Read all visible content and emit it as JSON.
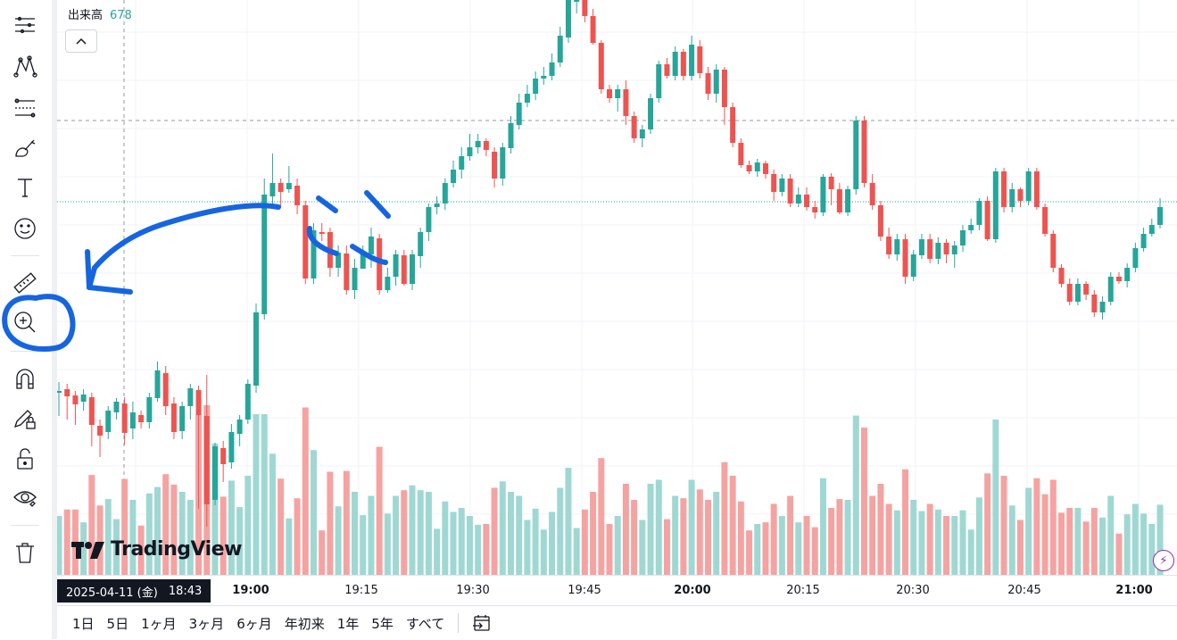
{
  "legend": {
    "label": "出来高",
    "value": "678"
  },
  "toolbar": {
    "tools": [
      "menu-icon",
      "pattern-icon",
      "fib-icon",
      "brush-icon",
      "text-icon",
      "emoji-icon",
      "ruler-icon",
      "zoom-in-icon",
      "magnet-icon",
      "lock-pencil-icon",
      "lock-icon",
      "eye-icon",
      "trash-icon"
    ]
  },
  "logo": {
    "text": "TradingView"
  },
  "time_axis": {
    "cursor_date": "2025-04-11 (金)",
    "cursor_time": "18:43",
    "ticks": [
      {
        "label": "19:00",
        "bold": true
      },
      {
        "label": "19:15",
        "bold": false
      },
      {
        "label": "19:30",
        "bold": false
      },
      {
        "label": "19:45",
        "bold": false
      },
      {
        "label": "20:00",
        "bold": true
      },
      {
        "label": "20:15",
        "bold": false
      },
      {
        "label": "20:30",
        "bold": false
      },
      {
        "label": "20:45",
        "bold": false
      },
      {
        "label": "21:00",
        "bold": true
      }
    ]
  },
  "ranges": [
    "1日",
    "5日",
    "1ヶ月",
    "3ヶ月",
    "6ヶ月",
    "年初来",
    "1年",
    "5年",
    "すべて"
  ],
  "colors": {
    "up": "#26a69a",
    "down": "#ef5350",
    "up_vol": "#9fd8d3",
    "down_vol": "#f5a3a1",
    "annotation": "#1565e0"
  },
  "candles": [
    [
      440,
      438,
      428,
      466
    ],
    [
      436,
      444,
      430,
      470
    ],
    [
      443,
      453,
      438,
      476
    ],
    [
      450,
      442,
      436,
      460
    ],
    [
      445,
      476,
      440,
      500
    ],
    [
      477,
      488,
      470,
      512
    ],
    [
      484,
      460,
      455,
      492
    ],
    [
      462,
      450,
      446,
      470
    ],
    [
      452,
      485,
      445,
      498
    ],
    [
      480,
      462,
      450,
      492
    ],
    [
      465,
      473,
      460,
      480
    ],
    [
      473,
      445,
      440,
      480
    ],
    [
      446,
      415,
      405,
      450
    ],
    [
      418,
      455,
      410,
      465
    ],
    [
      452,
      484,
      445,
      492
    ],
    [
      483,
      455,
      450,
      492
    ],
    [
      455,
      435,
      430,
      470
    ],
    [
      437,
      465,
      432,
      570
    ],
    [
      466,
      565,
      420,
      590
    ],
    [
      560,
      500,
      496,
      566
    ],
    [
      502,
      520,
      494,
      540
    ],
    [
      518,
      484,
      475,
      525
    ],
    [
      486,
      470,
      465,
      500
    ],
    [
      470,
      430,
      425,
      475
    ],
    [
      432,
      350,
      340,
      440
    ],
    [
      352,
      218,
      200,
      358
    ],
    [
      220,
      205,
      172,
      230
    ],
    [
      205,
      215,
      200,
      232
    ],
    [
      212,
      205,
      186,
      216
    ],
    [
      208,
      230,
      200,
      240
    ],
    [
      230,
      312,
      225,
      318
    ],
    [
      312,
      258,
      250,
      318
    ],
    [
      260,
      262,
      250,
      270
    ],
    [
      260,
      300,
      255,
      310
    ],
    [
      300,
      283,
      275,
      310
    ],
    [
      284,
      325,
      275,
      330
    ],
    [
      325,
      300,
      290,
      335
    ],
    [
      301,
      285,
      275,
      300
    ],
    [
      285,
      265,
      255,
      300
    ],
    [
      267,
      325,
      262,
      330
    ],
    [
      325,
      310,
      300,
      328
    ],
    [
      310,
      285,
      280,
      320
    ],
    [
      286,
      318,
      280,
      320
    ],
    [
      318,
      285,
      280,
      325
    ],
    [
      287,
      260,
      255,
      300
    ],
    [
      260,
      232,
      228,
      270
    ],
    [
      232,
      228,
      220,
      240
    ],
    [
      228,
      205,
      200,
      235
    ],
    [
      205,
      190,
      180,
      210
    ],
    [
      190,
      175,
      165,
      200
    ],
    [
      175,
      165,
      150,
      180
    ],
    [
      165,
      158,
      150,
      172
    ],
    [
      158,
      168,
      155,
      175
    ],
    [
      170,
      200,
      165,
      210
    ],
    [
      200,
      165,
      160,
      208
    ],
    [
      166,
      138,
      130,
      172
    ],
    [
      140,
      115,
      105,
      145
    ],
    [
      115,
      105,
      95,
      120
    ],
    [
      105,
      88,
      80,
      112
    ],
    [
      88,
      85,
      75,
      95
    ],
    [
      85,
      70,
      60,
      90
    ],
    [
      70,
      40,
      30,
      75
    ],
    [
      42,
      0,
      -10,
      48
    ],
    [
      0,
      0,
      -10,
      15
    ],
    [
      0,
      18,
      -5,
      25
    ],
    [
      18,
      48,
      10,
      50
    ],
    [
      48,
      100,
      45,
      105
    ],
    [
      100,
      110,
      95,
      115
    ],
    [
      110,
      100,
      95,
      125
    ],
    [
      100,
      130,
      90,
      140
    ],
    [
      130,
      155,
      125,
      160
    ],
    [
      155,
      145,
      140,
      165
    ],
    [
      145,
      110,
      105,
      150
    ],
    [
      110,
      72,
      68,
      115
    ],
    [
      72,
      85,
      65,
      88
    ],
    [
      85,
      58,
      52,
      90
    ],
    [
      58,
      85,
      55,
      90
    ],
    [
      85,
      50,
      40,
      90
    ],
    [
      52,
      82,
      45,
      88
    ],
    [
      82,
      105,
      75,
      112
    ],
    [
      105,
      78,
      72,
      115
    ],
    [
      78,
      120,
      75,
      140
    ],
    [
      120,
      160,
      115,
      165
    ],
    [
      160,
      185,
      155,
      188
    ],
    [
      185,
      192,
      180,
      195
    ],
    [
      192,
      182,
      178,
      198
    ],
    [
      183,
      195,
      180,
      200
    ],
    [
      195,
      215,
      190,
      225
    ],
    [
      215,
      200,
      195,
      220
    ],
    [
      200,
      228,
      195,
      232
    ],
    [
      228,
      218,
      210,
      232
    ],
    [
      218,
      232,
      210,
      236
    ],
    [
      232,
      238,
      225,
      245
    ],
    [
      238,
      198,
      195,
      242
    ],
    [
      198,
      212,
      194,
      230
    ],
    [
      212,
      238,
      205,
      240
    ],
    [
      238,
      212,
      208,
      242
    ],
    [
      212,
      135,
      130,
      218
    ],
    [
      135,
      205,
      130,
      210
    ],
    [
      205,
      230,
      195,
      235
    ],
    [
      230,
      265,
      225,
      270
    ],
    [
      265,
      285,
      255,
      290
    ],
    [
      285,
      268,
      262,
      292
    ],
    [
      268,
      310,
      262,
      318
    ],
    [
      310,
      285,
      280,
      315
    ],
    [
      286,
      268,
      262,
      290
    ],
    [
      268,
      290,
      262,
      295
    ],
    [
      290,
      272,
      266,
      296
    ],
    [
      272,
      285,
      268,
      295
    ],
    [
      285,
      275,
      270,
      300
    ],
    [
      275,
      258,
      252,
      282
    ],
    [
      258,
      252,
      245,
      262
    ],
    [
      252,
      225,
      222,
      258
    ],
    [
      225,
      268,
      220,
      270
    ],
    [
      268,
      192,
      188,
      272
    ],
    [
      192,
      232,
      188,
      238
    ],
    [
      232,
      212,
      205,
      238
    ],
    [
      212,
      225,
      210,
      232
    ],
    [
      225,
      192,
      188,
      230
    ],
    [
      192,
      232,
      188,
      235
    ],
    [
      232,
      262,
      228,
      265
    ],
    [
      262,
      300,
      258,
      305
    ],
    [
      300,
      318,
      296,
      322
    ],
    [
      318,
      338,
      312,
      342
    ],
    [
      338,
      318,
      312,
      342
    ],
    [
      318,
      330,
      315,
      336
    ],
    [
      330,
      350,
      325,
      355
    ],
    [
      350,
      338,
      332,
      358
    ],
    [
      338,
      310,
      305,
      342
    ],
    [
      310,
      315,
      305,
      318
    ],
    [
      315,
      300,
      295,
      322
    ],
    [
      300,
      278,
      272,
      305
    ],
    [
      278,
      262,
      255,
      282
    ],
    [
      262,
      252,
      245,
      265
    ],
    [
      252,
      232,
      222,
      256
    ]
  ]
}
